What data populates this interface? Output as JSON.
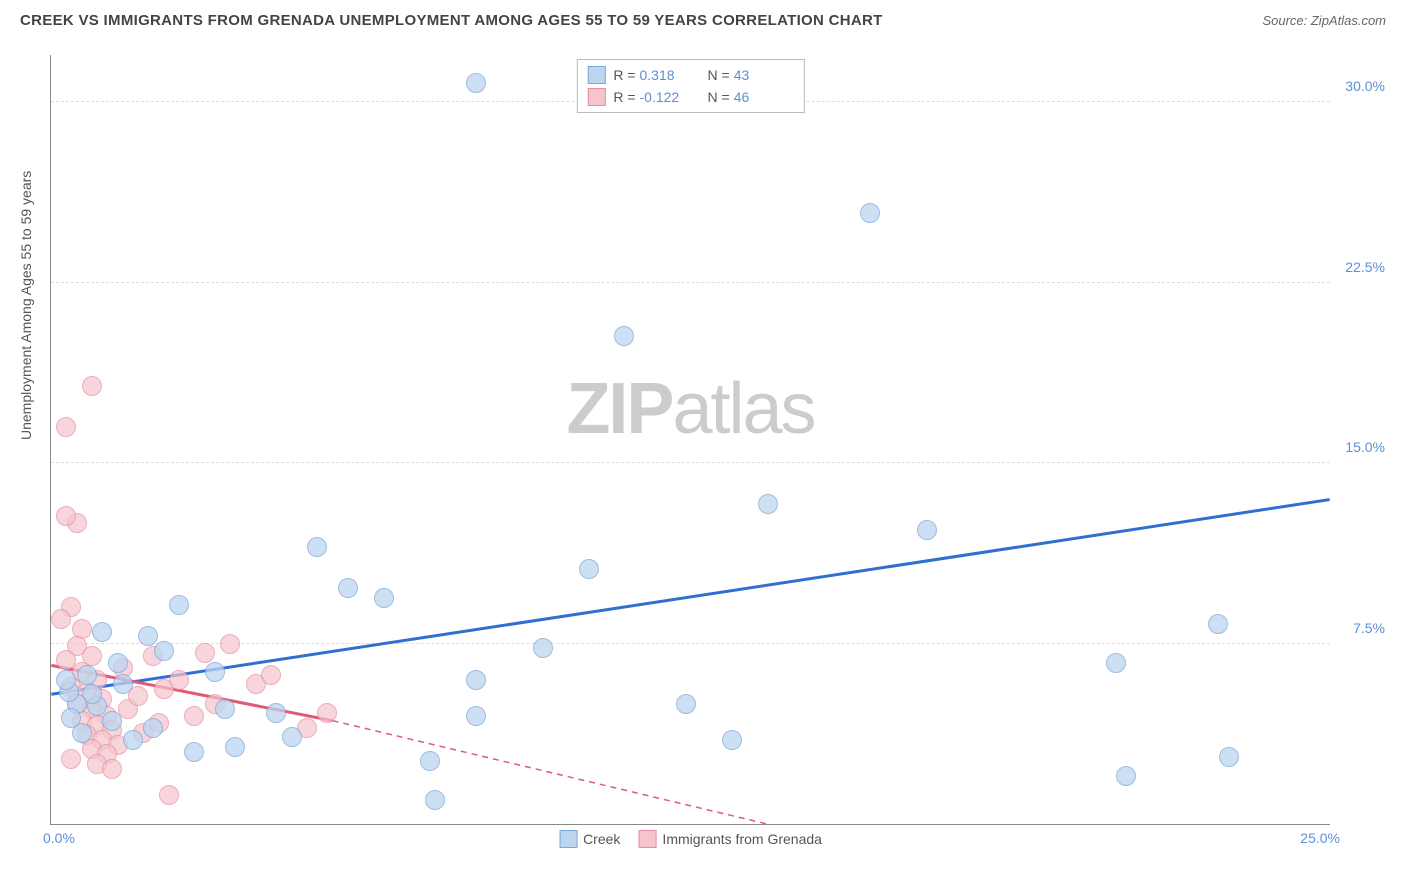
{
  "title": "CREEK VS IMMIGRANTS FROM GRENADA UNEMPLOYMENT AMONG AGES 55 TO 59 YEARS CORRELATION CHART",
  "source": "Source: ZipAtlas.com",
  "y_axis_label": "Unemployment Among Ages 55 to 59 years",
  "watermark": {
    "bold": "ZIP",
    "light": "atlas"
  },
  "chart": {
    "type": "scatter",
    "xlim": [
      0,
      25
    ],
    "ylim": [
      0,
      32
    ],
    "x_tick_left": "0.0%",
    "x_tick_right": "25.0%",
    "y_ticks": [
      {
        "value": 7.5,
        "label": "7.5%"
      },
      {
        "value": 15.0,
        "label": "15.0%"
      },
      {
        "value": 22.5,
        "label": "22.5%"
      },
      {
        "value": 30.0,
        "label": "30.0%"
      }
    ],
    "grid_color": "#dddddd",
    "axis_color": "#888888",
    "background_color": "#ffffff"
  },
  "series": {
    "creek": {
      "label": "Creek",
      "fill": "#bcd5f0",
      "stroke": "#7aa8d8",
      "opacity": 0.75,
      "marker_radius": 10,
      "R": "0.318",
      "N": "43",
      "trend": {
        "color": "#2f6fd0",
        "width": 3,
        "x1": 0,
        "y1": 5.4,
        "x2": 25,
        "y2": 13.5,
        "dash_after_x": 25
      },
      "points": [
        [
          8.3,
          30.8
        ],
        [
          16.0,
          25.4
        ],
        [
          11.2,
          20.3
        ],
        [
          14.0,
          13.3
        ],
        [
          17.1,
          12.2
        ],
        [
          22.8,
          8.3
        ],
        [
          20.8,
          6.7
        ],
        [
          23.0,
          2.8
        ],
        [
          21.0,
          2.0
        ],
        [
          13.3,
          3.5
        ],
        [
          12.4,
          5.0
        ],
        [
          10.5,
          10.6
        ],
        [
          9.6,
          7.3
        ],
        [
          8.3,
          6.0
        ],
        [
          8.3,
          4.5
        ],
        [
          7.5,
          1.0
        ],
        [
          7.4,
          2.6
        ],
        [
          6.5,
          9.4
        ],
        [
          5.8,
          9.8
        ],
        [
          5.2,
          11.5
        ],
        [
          4.7,
          3.6
        ],
        [
          4.4,
          4.6
        ],
        [
          3.6,
          3.2
        ],
        [
          3.4,
          4.8
        ],
        [
          3.2,
          6.3
        ],
        [
          2.8,
          3.0
        ],
        [
          2.5,
          9.1
        ],
        [
          2.2,
          7.2
        ],
        [
          2.0,
          4.0
        ],
        [
          1.9,
          7.8
        ],
        [
          1.6,
          3.5
        ],
        [
          1.4,
          5.8
        ],
        [
          1.3,
          6.7
        ],
        [
          1.2,
          4.3
        ],
        [
          1.0,
          8.0
        ],
        [
          0.9,
          4.9
        ],
        [
          0.8,
          5.4
        ],
        [
          0.7,
          6.2
        ],
        [
          0.6,
          3.8
        ],
        [
          0.5,
          5.0
        ],
        [
          0.4,
          4.4
        ],
        [
          0.35,
          5.5
        ],
        [
          0.3,
          6.0
        ]
      ]
    },
    "grenada": {
      "label": "Immigrants from Grenada",
      "fill": "#f5c4cd",
      "stroke": "#e88ba0",
      "opacity": 0.7,
      "marker_radius": 10,
      "R": "-0.122",
      "N": "46",
      "trend": {
        "color": "#e05a78",
        "width": 3,
        "x1": 0,
        "y1": 6.6,
        "x2": 5.5,
        "y2": 4.3,
        "dash_to_x": 14.0,
        "dash_to_y": 0
      },
      "points": [
        [
          0.8,
          18.2
        ],
        [
          0.3,
          16.5
        ],
        [
          0.5,
          12.5
        ],
        [
          0.3,
          12.8
        ],
        [
          0.4,
          9.0
        ],
        [
          0.2,
          8.5
        ],
        [
          0.6,
          8.1
        ],
        [
          0.5,
          7.4
        ],
        [
          0.8,
          7.0
        ],
        [
          0.3,
          6.8
        ],
        [
          0.6,
          6.3
        ],
        [
          0.9,
          6.0
        ],
        [
          0.4,
          5.7
        ],
        [
          0.7,
          5.5
        ],
        [
          1.0,
          5.2
        ],
        [
          0.5,
          5.0
        ],
        [
          0.8,
          4.8
        ],
        [
          1.1,
          4.5
        ],
        [
          0.6,
          4.3
        ],
        [
          0.9,
          4.1
        ],
        [
          1.2,
          3.9
        ],
        [
          0.7,
          3.7
        ],
        [
          1.0,
          3.5
        ],
        [
          1.3,
          3.3
        ],
        [
          0.8,
          3.1
        ],
        [
          1.1,
          2.9
        ],
        [
          0.4,
          2.7
        ],
        [
          0.9,
          2.5
        ],
        [
          1.2,
          2.3
        ],
        [
          1.4,
          6.5
        ],
        [
          1.5,
          4.8
        ],
        [
          1.7,
          5.3
        ],
        [
          1.8,
          3.8
        ],
        [
          2.0,
          7.0
        ],
        [
          2.1,
          4.2
        ],
        [
          2.2,
          5.6
        ],
        [
          2.3,
          1.2
        ],
        [
          2.5,
          6.0
        ],
        [
          2.8,
          4.5
        ],
        [
          3.0,
          7.1
        ],
        [
          3.2,
          5.0
        ],
        [
          3.5,
          7.5
        ],
        [
          4.0,
          5.8
        ],
        [
          4.3,
          6.2
        ],
        [
          5.0,
          4.0
        ],
        [
          5.4,
          4.6
        ]
      ]
    }
  },
  "legend_top": {
    "R_label": "R =",
    "N_label": "N ="
  },
  "legend_bottom": {
    "s1": "Creek",
    "s2": "Immigrants from Grenada"
  }
}
